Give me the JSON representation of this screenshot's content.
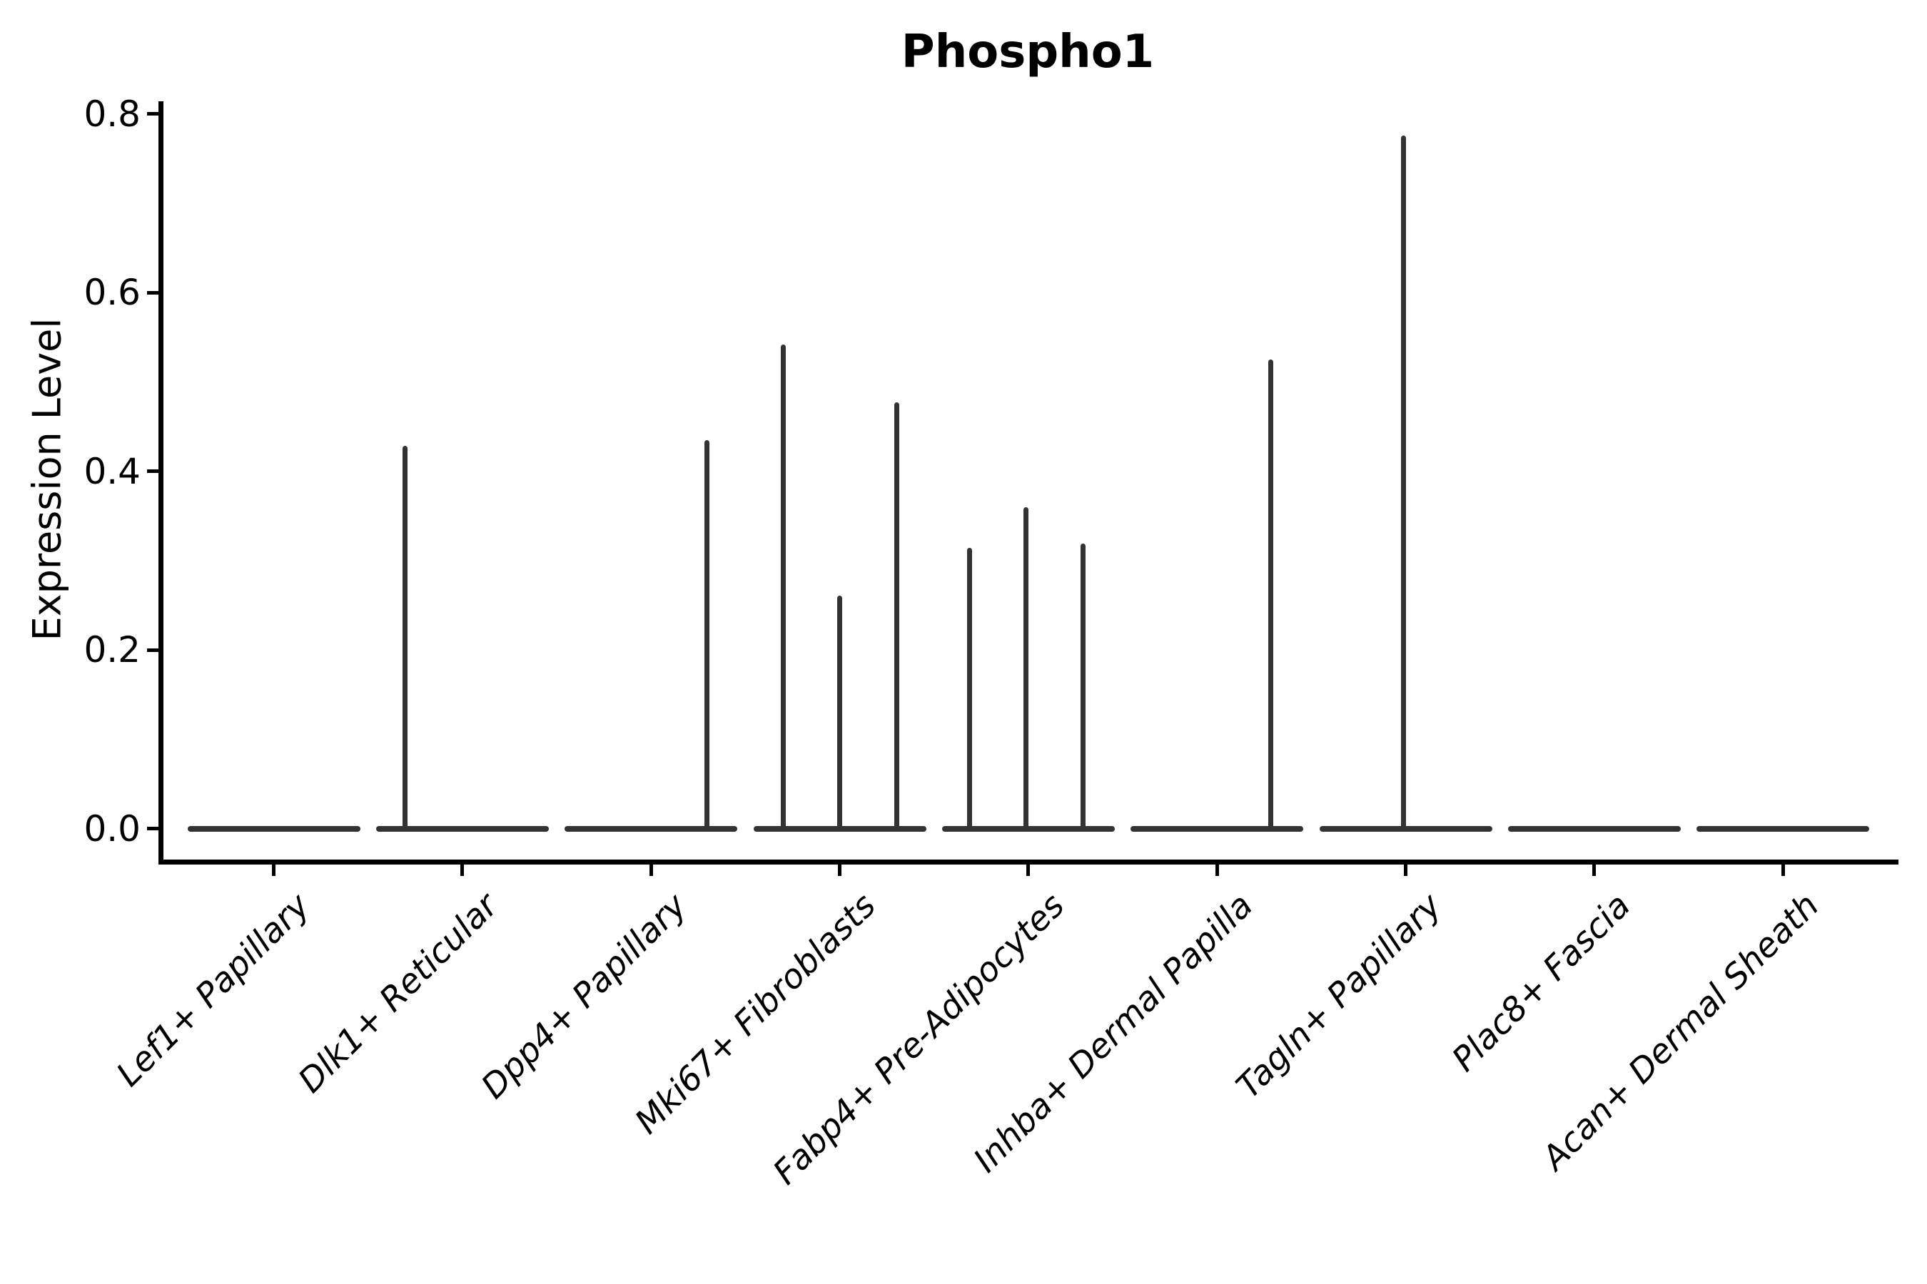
{
  "chart_data": {
    "type": "violin",
    "title": "Phospho1",
    "ylabel": "Expression Level",
    "xlabel": "",
    "ylim": [
      0.0,
      0.8
    ],
    "yticks": [
      0.0,
      0.2,
      0.4,
      0.6,
      0.8
    ],
    "ytick_labels": [
      "0.0",
      "0.2",
      "0.4",
      "0.6",
      "0.8"
    ],
    "grid": false,
    "legend": "none",
    "categories": [
      "Lef1+ Papillary",
      "Dlk1+ Reticular",
      "Dpp4+ Papillary",
      "Mki67+ Fibroblasts",
      "Fabp4+ Pre-Adipocytes",
      "Inhba+ Dermal Papilla",
      "Tagln+ Papillary",
      "Plac8+ Fascia",
      "Acan+ Dermal Sheath"
    ],
    "series": [
      {
        "name": "Lef1+ Papillary",
        "baseline": 0.0,
        "spikes": []
      },
      {
        "name": "Dlk1+ Reticular",
        "baseline": 0.0,
        "spikes": [
          {
            "dx": -0.303,
            "value": 0.428
          }
        ]
      },
      {
        "name": "Dpp4+ Papillary",
        "baseline": 0.0,
        "spikes": [
          {
            "dx": 0.295,
            "value": 0.435
          }
        ]
      },
      {
        "name": "Mki67+ Fibroblasts",
        "baseline": 0.0,
        "spikes": [
          {
            "dx": -0.299,
            "value": 0.542
          },
          {
            "dx": 0.0,
            "value": 0.261
          },
          {
            "dx": 0.303,
            "value": 0.477
          }
        ]
      },
      {
        "name": "Fabp4+ Pre-Adipocytes",
        "baseline": 0.0,
        "spikes": [
          {
            "dx": -0.31,
            "value": 0.314
          },
          {
            "dx": -0.011,
            "value": 0.36
          },
          {
            "dx": 0.291,
            "value": 0.319
          }
        ]
      },
      {
        "name": "Inhba+ Dermal Papilla",
        "baseline": 0.0,
        "spikes": [
          {
            "dx": 0.284,
            "value": 0.525
          }
        ]
      },
      {
        "name": "Tagln+ Papillary",
        "baseline": 0.0,
        "spikes": [
          {
            "dx": -0.011,
            "value": 0.776
          }
        ]
      },
      {
        "name": "Plac8+ Fascia",
        "baseline": 0.0,
        "spikes": []
      },
      {
        "name": "Acan+ Dermal Sheath",
        "baseline": 0.0,
        "spikes": []
      }
    ],
    "style": {
      "violin_color": "#333333",
      "axis_color": "#000000",
      "text_color": "#000000",
      "background": "#ffffff",
      "x_tick_label_style": "italic",
      "x_tick_label_rotation_deg": 45,
      "title_bold": true
    }
  }
}
